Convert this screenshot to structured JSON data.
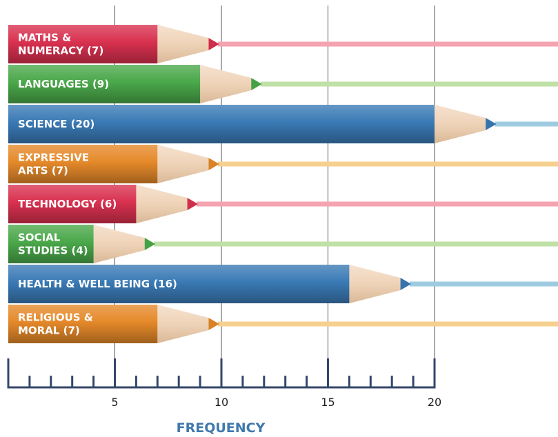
{
  "chart_data": {
    "type": "bar",
    "orientation": "horizontal",
    "title": "",
    "xlabel": "FREQUENCY",
    "ylabel": "",
    "xlim": [
      0,
      20
    ],
    "xticks": [
      5,
      10,
      15,
      20
    ],
    "grid": true,
    "bars": [
      {
        "lines": [
          "MATHS &",
          "NUMERACY (7)"
        ],
        "value": 7,
        "color": "#d9314f",
        "line_color": "#f4a3b0"
      },
      {
        "lines": [
          "LANGUAGES (9)"
        ],
        "value": 9,
        "color": "#4aa84a",
        "line_color": "#bfe0a6"
      },
      {
        "lines": [
          "SCIENCE (20)"
        ],
        "value": 20,
        "color": "#3a7ab5",
        "line_color": "#9fcbe0"
      },
      {
        "lines": [
          "EXPRESSIVE",
          "ARTS (7)"
        ],
        "value": 7,
        "color": "#e5892a",
        "line_color": "#f5d08f"
      },
      {
        "lines": [
          "TECHNOLOGY (6)"
        ],
        "value": 6,
        "color": "#d9314f",
        "line_color": "#f4a3b0"
      },
      {
        "lines": [
          "SOCIAL",
          "STUDIES (4)"
        ],
        "value": 4,
        "color": "#4aa84a",
        "line_color": "#bfe0a6"
      },
      {
        "lines": [
          "HEALTH & WELL BEING (16)"
        ],
        "value": 16,
        "color": "#3a7ab5",
        "line_color": "#9fcbe0"
      },
      {
        "lines": [
          "RELIGIOUS &",
          "MORAL (7)"
        ],
        "value": 7,
        "color": "#e5892a",
        "line_color": "#f5d08f"
      }
    ]
  }
}
